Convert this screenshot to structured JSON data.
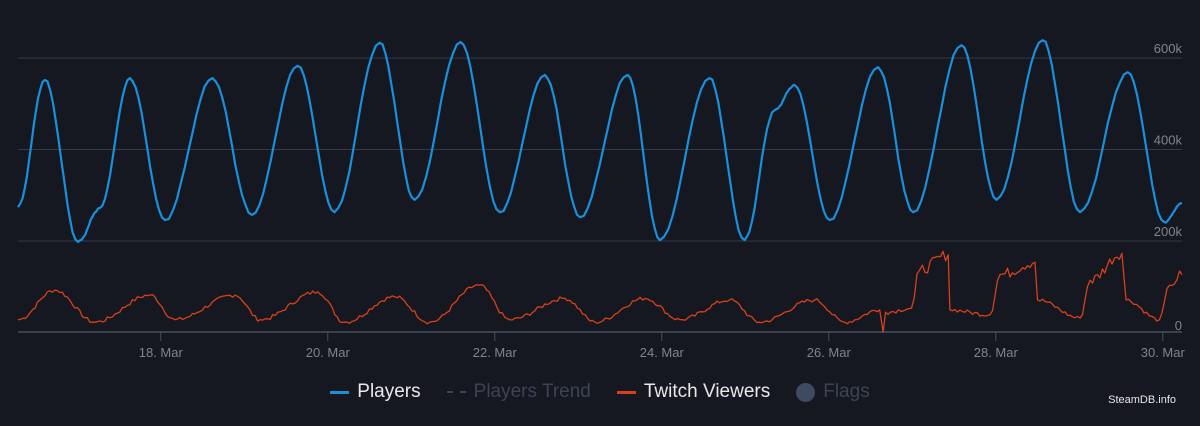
{
  "chart_data": {
    "type": "line",
    "x_unit": "day of March",
    "xlim": [
      16.29,
      30.23
    ],
    "x_ticks": [
      18,
      20,
      22,
      24,
      26,
      28,
      30
    ],
    "x_tick_labels": [
      "18. Mar",
      "20. Mar",
      "22. Mar",
      "24. Mar",
      "26. Mar",
      "28. Mar",
      "30. Mar"
    ],
    "panes": [
      {
        "name": "players",
        "ylim": [
          200,
          600
        ],
        "y_unit": "thousands",
        "y_ticks": [
          200,
          400,
          600
        ],
        "y_tick_labels": [
          "200k",
          "400k",
          "600k"
        ]
      },
      {
        "name": "twitch",
        "ylim": [
          0,
          100
        ],
        "y_ticks": [
          0
        ],
        "y_tick_labels": [
          "0"
        ]
      }
    ],
    "grid": true,
    "legend_position": "bottom",
    "series": [
      {
        "name": "Players",
        "pane": "players",
        "color": "#1a8fdc",
        "visible": true,
        "points": [
          [
            16.29,
            274
          ],
          [
            16.61,
            552
          ],
          [
            17.01,
            198
          ],
          [
            17.27,
            272
          ],
          [
            17.63,
            556
          ],
          [
            18.05,
            246
          ],
          [
            18.62,
            556
          ],
          [
            19.09,
            257
          ],
          [
            19.64,
            583
          ],
          [
            20.08,
            263
          ],
          [
            20.62,
            633
          ],
          [
            21.04,
            290
          ],
          [
            21.59,
            635
          ],
          [
            22.06,
            263
          ],
          [
            22.6,
            563
          ],
          [
            23.02,
            252
          ],
          [
            23.59,
            563
          ],
          [
            23.98,
            202
          ],
          [
            24.57,
            556
          ],
          [
            24.99,
            202
          ],
          [
            25.35,
            486
          ],
          [
            25.59,
            541
          ],
          [
            26.01,
            246
          ],
          [
            26.59,
            580
          ],
          [
            27.01,
            263
          ],
          [
            27.59,
            628
          ],
          [
            28.01,
            290
          ],
          [
            28.56,
            639
          ],
          [
            29.01,
            263
          ],
          [
            29.58,
            569
          ],
          [
            30.02,
            241
          ],
          [
            30.23,
            283
          ]
        ]
      },
      {
        "name": "Players Trend",
        "pane": "players",
        "color": "#3a4456",
        "visible": false,
        "points": []
      },
      {
        "name": "Twitch Viewers",
        "pane": "twitch",
        "color": "#d8401a",
        "visible": true,
        "points": [
          [
            16.29,
            15
          ],
          [
            16.73,
            51
          ],
          [
            17.21,
            12
          ],
          [
            17.87,
            45
          ],
          [
            18.17,
            15
          ],
          [
            18.89,
            45
          ],
          [
            19.19,
            15
          ],
          [
            19.88,
            49
          ],
          [
            20.2,
            12
          ],
          [
            20.8,
            43
          ],
          [
            21.22,
            12
          ],
          [
            21.81,
            57
          ],
          [
            22.18,
            15
          ],
          [
            22.84,
            41
          ],
          [
            23.2,
            12
          ],
          [
            23.8,
            41
          ],
          [
            24.22,
            15
          ],
          [
            24.81,
            39
          ],
          [
            25.17,
            12
          ],
          [
            25.83,
            39
          ],
          [
            26.19,
            12
          ],
          [
            26.61,
            27
          ],
          [
            26.65,
            0
          ],
          [
            26.68,
            24
          ],
          [
            26.99,
            29
          ],
          [
            27.09,
            76
          ],
          [
            27.43,
            94
          ],
          [
            27.45,
            27
          ],
          [
            27.93,
            21
          ],
          [
            28.05,
            70
          ],
          [
            28.47,
            85
          ],
          [
            28.5,
            39
          ],
          [
            29.01,
            17
          ],
          [
            29.13,
            63
          ],
          [
            29.51,
            96
          ],
          [
            29.56,
            39
          ],
          [
            29.96,
            15
          ],
          [
            30.08,
            57
          ],
          [
            30.23,
            70
          ]
        ]
      },
      {
        "name": "Flags",
        "color": "#3e4a61",
        "visible": false,
        "points": []
      }
    ]
  },
  "legend": {
    "players": "Players",
    "players_trend": "Players Trend",
    "twitch": "Twitch Viewers",
    "flags": "Flags"
  },
  "credit": "SteamDB.info"
}
